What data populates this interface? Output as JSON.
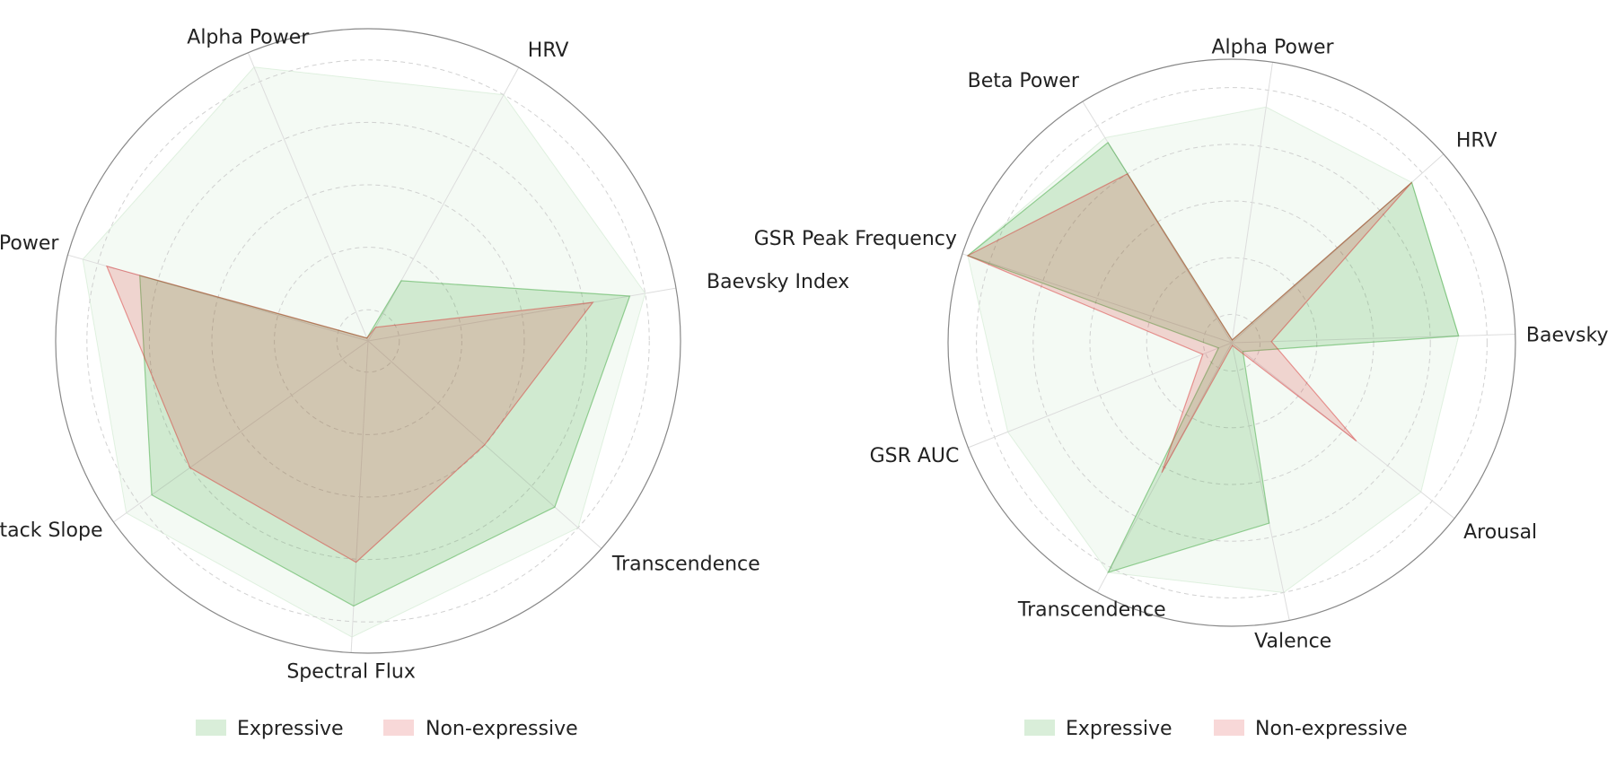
{
  "colors": {
    "expressive_fill": "#2ca02c",
    "non_expressive_fill": "#d62728",
    "grid": "#cccccc",
    "outer_ring": "#888888"
  },
  "chart_data": [
    {
      "type": "radar",
      "axes": [
        "Baevsky Index",
        "HRV",
        "Alpha Power",
        "Beta Power",
        "Attack Slope",
        "Spectral Flux",
        "Transcendence"
      ],
      "rlim": [
        0,
        1
      ],
      "grid": true,
      "envelope_values": [
        0.9,
        0.9,
        0.95,
        0.95,
        0.95,
        0.95,
        0.9
      ],
      "series": [
        {
          "name": "Expressive",
          "values": [
            0.85,
            0.22,
            0.01,
            0.76,
            0.85,
            0.85,
            0.8
          ]
        },
        {
          "name": "Non-expressive",
          "values": [
            0.73,
            0.05,
            0.01,
            0.87,
            0.7,
            0.71,
            0.5
          ]
        }
      ],
      "legend": {
        "position": "bottom",
        "entries": [
          "Expressive",
          "Non-expressive"
        ]
      }
    },
    {
      "type": "radar",
      "axes": [
        "Baevsky Index",
        "HRV",
        "Alpha Power",
        "Beta Power",
        "GSR Peak Frequency",
        "GSR AUC",
        "Transcendence",
        "Valence",
        "Arousal"
      ],
      "rlim": [
        0,
        1
      ],
      "grid": true,
      "envelope_values": [
        0.8,
        0.85,
        0.84,
        0.85,
        0.98,
        0.85,
        0.92,
        0.9,
        0.85
      ],
      "series": [
        {
          "name": "Expressive",
          "values": [
            0.8,
            0.85,
            0.01,
            0.83,
            0.98,
            0.05,
            0.92,
            0.65,
            0.05
          ]
        },
        {
          "name": "Non-expressive",
          "values": [
            0.14,
            0.85,
            0.01,
            0.7,
            0.98,
            0.11,
            0.52,
            0.01,
            0.56
          ]
        }
      ],
      "legend": {
        "position": "bottom",
        "entries": [
          "Expressive",
          "Non-expressive"
        ]
      }
    }
  ]
}
